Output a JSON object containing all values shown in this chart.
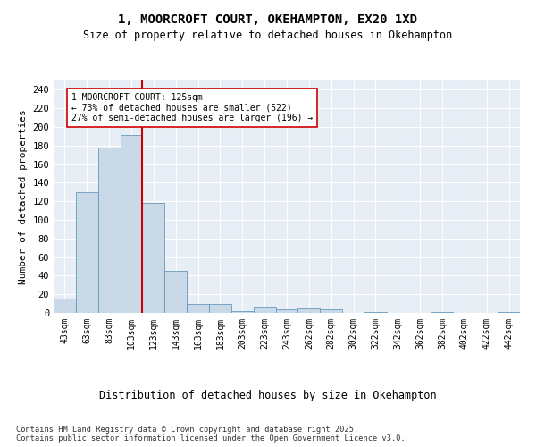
{
  "title_line1": "1, MOORCROFT COURT, OKEHAMPTON, EX20 1XD",
  "title_line2": "Size of property relative to detached houses in Okehampton",
  "xlabel": "Distribution of detached houses by size in Okehampton",
  "ylabel": "Number of detached properties",
  "categories": [
    "43sqm",
    "63sqm",
    "83sqm",
    "103sqm",
    "123sqm",
    "143sqm",
    "163sqm",
    "183sqm",
    "203sqm",
    "223sqm",
    "243sqm",
    "262sqm",
    "282sqm",
    "302sqm",
    "322sqm",
    "342sqm",
    "362sqm",
    "382sqm",
    "402sqm",
    "422sqm",
    "442sqm"
  ],
  "values": [
    15,
    130,
    178,
    191,
    118,
    45,
    10,
    10,
    2,
    7,
    4,
    5,
    4,
    0,
    1,
    0,
    0,
    1,
    0,
    0,
    1
  ],
  "bar_color": "#c9d9e8",
  "bar_edge_color": "#6699bb",
  "vline_x_index": 4,
  "vline_color": "#cc0000",
  "annotation_text": "1 MOORCROFT COURT: 125sqm\n← 73% of detached houses are smaller (522)\n27% of semi-detached houses are larger (196) →",
  "annotation_box_color": "white",
  "annotation_box_edge": "#cc0000",
  "annotation_fontsize": 7.0,
  "ylim": [
    0,
    250
  ],
  "yticks": [
    0,
    20,
    40,
    60,
    80,
    100,
    120,
    140,
    160,
    180,
    200,
    220,
    240
  ],
  "background_color": "#e8eef5",
  "grid_color": "white",
  "footer_text": "Contains HM Land Registry data © Crown copyright and database right 2025.\nContains public sector information licensed under the Open Government Licence v3.0.",
  "title_fontsize": 10,
  "subtitle_fontsize": 8.5,
  "xlabel_fontsize": 8.5,
  "ylabel_fontsize": 8,
  "tick_fontsize": 7,
  "ytick_fontsize": 7.5
}
